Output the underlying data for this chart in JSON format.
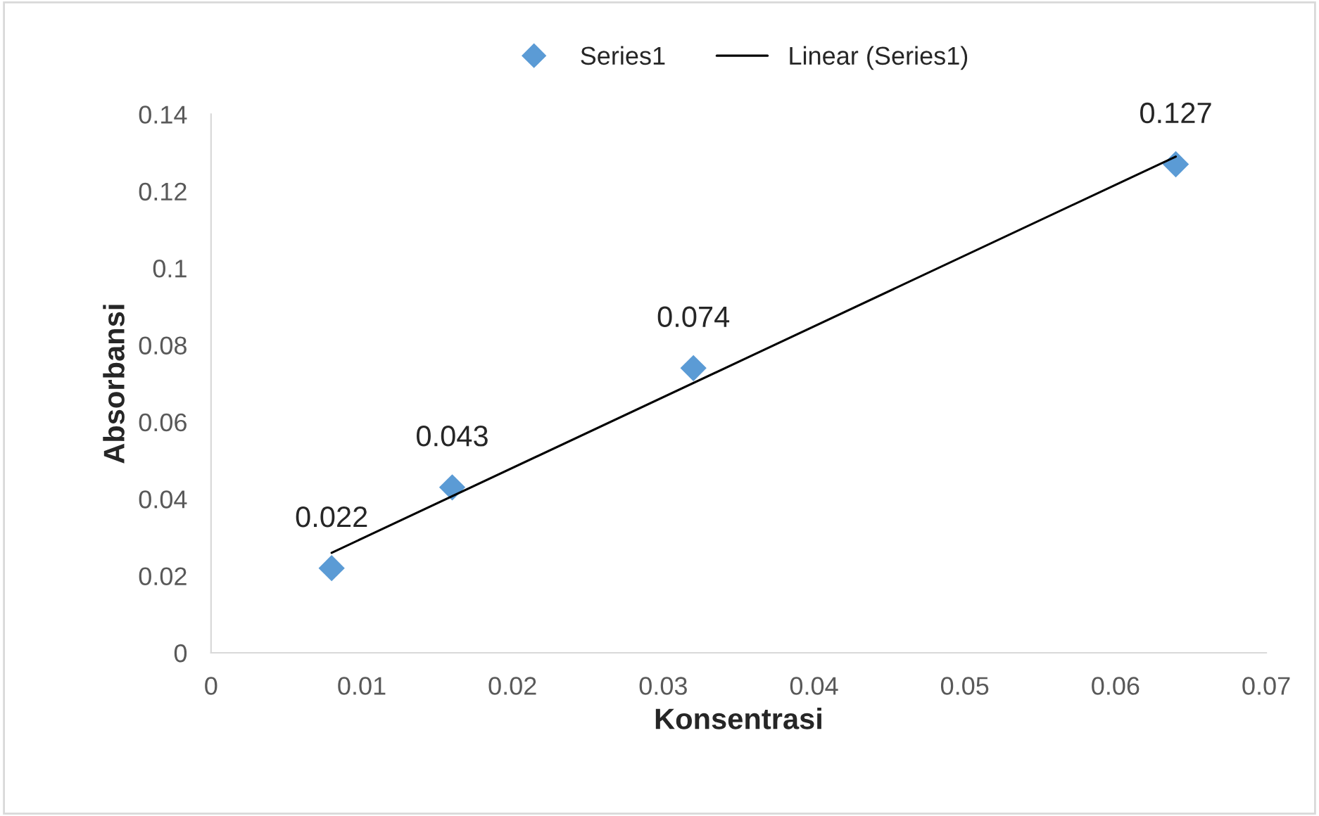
{
  "chart_data": {
    "type": "scatter",
    "xlabel": "Konsentrasi",
    "ylabel": "Absorbansi",
    "xlim": [
      0,
      0.07
    ],
    "xticks": [
      0,
      0.01,
      0.02,
      0.03,
      0.04,
      0.05,
      0.06,
      0.07
    ],
    "ylim": [
      0,
      0.14
    ],
    "yticks": [
      0,
      0.02,
      0.04,
      0.06,
      0.08,
      {
        "value": 0.1,
        "label": "0.1"
      },
      0.12,
      0.14
    ],
    "grid": false,
    "legend": "top",
    "series": [
      {
        "name": "Series1",
        "marker": "diamond",
        "color": "#5b9bd5",
        "x": [
          0.008,
          0.016,
          0.032,
          0.064
        ],
        "values": [
          0.022,
          0.043,
          0.074,
          0.127
        ],
        "value_labels": [
          "0.022",
          "0.043",
          "0.074",
          "0.127"
        ]
      },
      {
        "name": "Linear (Series1)",
        "type": "line",
        "marker": "none",
        "line_style": "solid",
        "color": "#000000",
        "x": [
          0.008,
          0.064
        ],
        "values": [
          0.026,
          0.129
        ]
      }
    ]
  }
}
